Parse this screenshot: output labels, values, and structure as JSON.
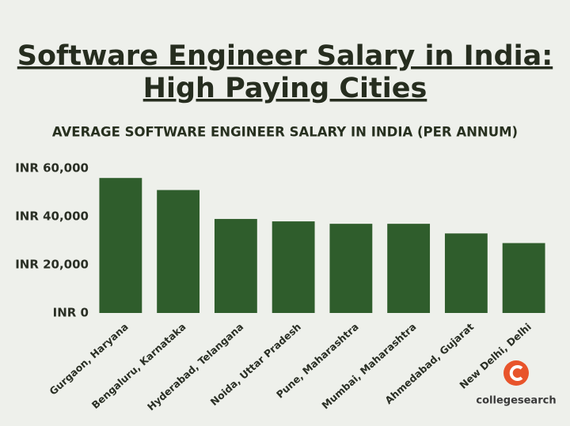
{
  "chart_data": {
    "type": "bar",
    "title": [
      "Software Engineer Salary in India:",
      "High Paying Cities"
    ],
    "subtitle": "AVERAGE SOFTWARE ENGINEER SALARY IN INDIA (PER ANNUM)",
    "categories": [
      "Gurgaon, Haryana",
      "Bengaluru, Karnataka",
      "Hyderabad, Telangana",
      "Noida, Uttar Pradesh",
      "Pune, Maharashtra",
      "Mumbai, Maharashtra",
      "Ahmedabad, Gujarat",
      "New Delhi, Delhi"
    ],
    "values": [
      56000,
      51000,
      39000,
      38000,
      37000,
      37000,
      33000,
      29000
    ],
    "color": "#2f5d2c",
    "ylim": [
      0,
      60000
    ],
    "yticks": [
      {
        "value": 0,
        "label": "INR 0"
      },
      {
        "value": 20000,
        "label": "INR 20,000"
      },
      {
        "value": 40000,
        "label": "INR 40,000"
      },
      {
        "value": 60000,
        "label": "INR 60,000"
      }
    ],
    "grid": false
  },
  "logo": "collegesearch"
}
